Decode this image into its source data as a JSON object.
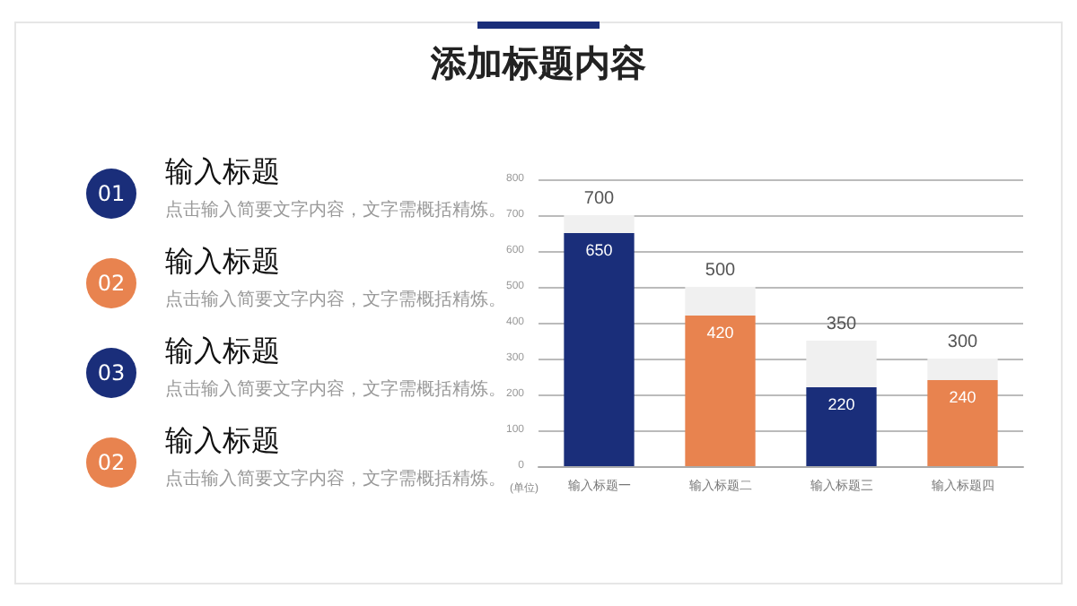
{
  "chart_data": [
    {
      "type": "other",
      "title": "添加标题内容",
      "colors": [
        "#1a2e7a",
        "#e8834f",
        "#1a2e7a",
        "#e8834f"
      ],
      "annotations": [
        "01",
        "输入标题",
        "点击输入简要文字内容，文字需概括精炼。",
        "02",
        "输入标题",
        "点击输入简要文字内容，文字需概括精炼。",
        "03",
        "输入标题",
        "点击输入简要文字内容，文字需概括精炼。",
        "02",
        "输入标题",
        "点击输入简要文字内容，文字需概括精炼。"
      ]
    },
    {
      "type": "bar",
      "ylabel": "(单位)",
      "categories": [
        "输入标题一",
        "输入标题二",
        "输入标题三",
        "输入标题四"
      ],
      "series": [
        {
          "colors": [
            "#1a2e7a",
            "#e8834f",
            "#1a2e7a",
            "#e8834f"
          ],
          "values": [
            650,
            420,
            220,
            240
          ],
          "value_labels": [
            "650",
            "420",
            "220",
            "240"
          ]
        },
        {
          "color": "#f0f0f0",
          "values": [
            50,
            80,
            130,
            60
          ]
        }
      ],
      "stacked": true,
      "totals": [
        "700",
        "500",
        "350",
        "300"
      ],
      "ylim": [
        0,
        800
      ],
      "yticks": [
        0,
        100,
        200,
        300,
        400,
        500,
        600,
        700,
        800
      ],
      "grid": "y"
    }
  ]
}
